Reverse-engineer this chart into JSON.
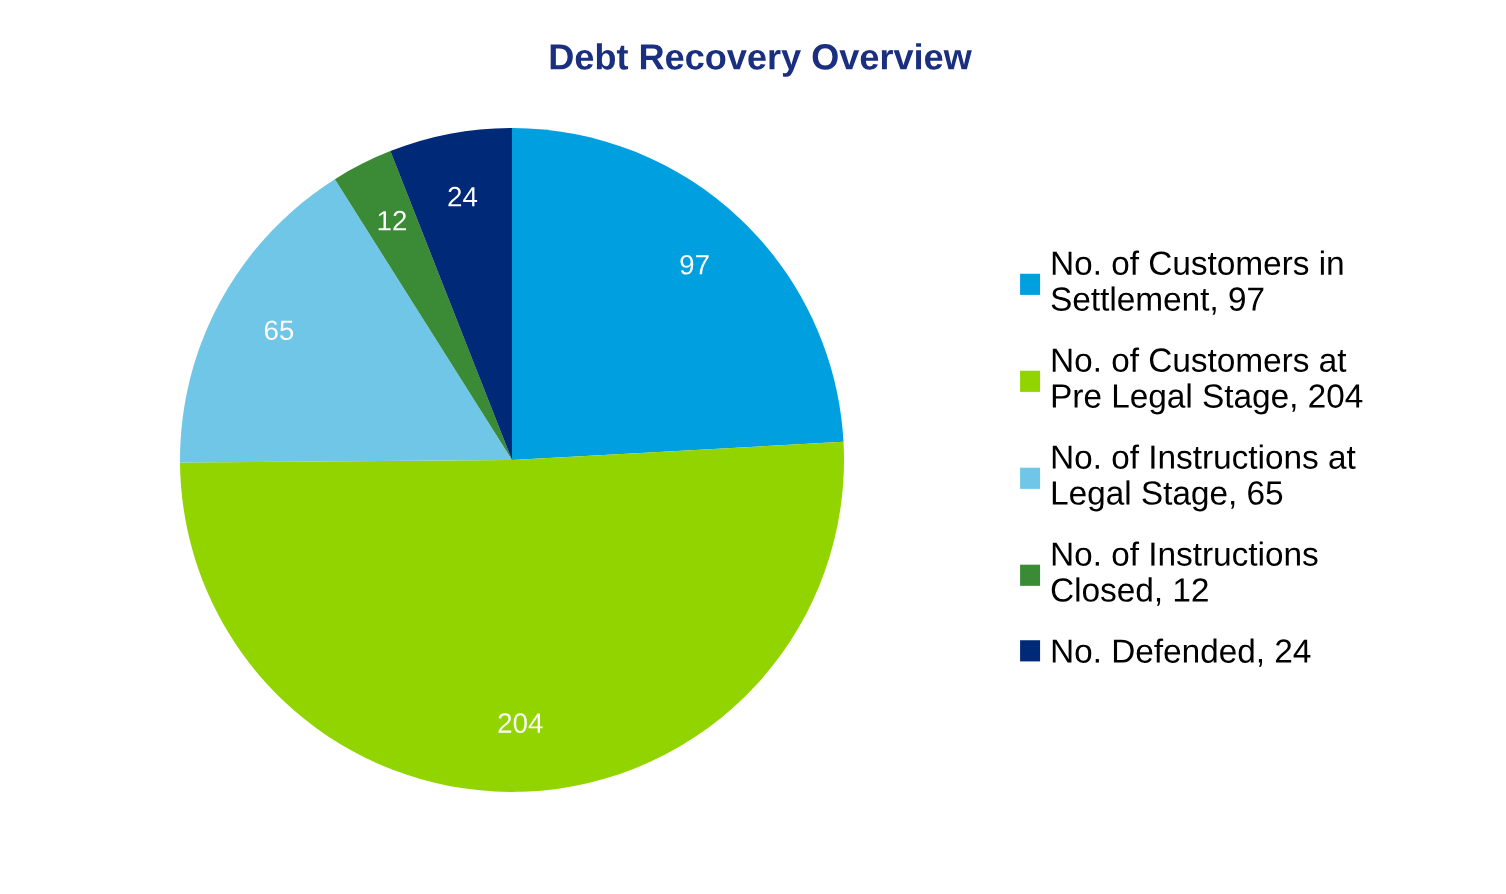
{
  "chart_data": {
    "type": "pie",
    "title": "Debt Recovery Overview",
    "categories": [
      "No. of Customers in Settlement, 97",
      "No. of Customers at Pre Legal Stage, 204",
      "No. of Instructions at Legal Stage, 65",
      "No. of Instructions Closed, 12",
      "No. Defended, 24"
    ],
    "values": [
      97,
      204,
      65,
      12,
      24
    ],
    "colors": [
      "#00a0e0",
      "#92d400",
      "#70c6e6",
      "#3b8a35",
      "#002a78"
    ],
    "data_labels": true,
    "legend": "right"
  }
}
